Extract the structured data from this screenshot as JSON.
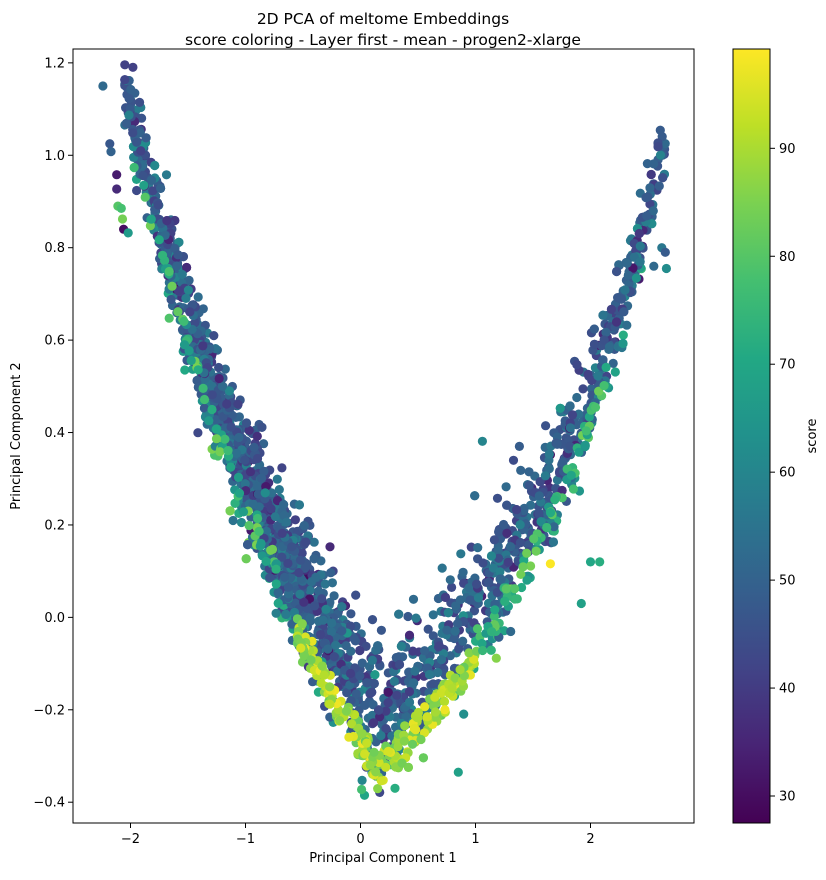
{
  "chart_data": {
    "type": "scatter",
    "title": "2D PCA of meltome Embeddings",
    "subtitle": "score coloring - Layer first - mean - progen2-xlarge",
    "xlabel": "Principal Component 1",
    "ylabel": "Principal Component 2",
    "xlim": [
      -2.5,
      2.9
    ],
    "ylim": [
      -0.445,
      1.23
    ],
    "x_ticks": [
      -2,
      -1,
      0,
      1,
      2
    ],
    "y_ticks": [
      -0.4,
      -0.2,
      0.0,
      0.2,
      0.4,
      0.6,
      0.8,
      1.0,
      1.2
    ],
    "x_tick_labels": [
      "−2",
      "−1",
      "0",
      "1",
      "2"
    ],
    "y_tick_labels": [
      "−0.4",
      "−0.2",
      "0.0",
      "0.2",
      "0.4",
      "0.6",
      "0.8",
      "1.0",
      "1.2"
    ],
    "grid": false,
    "colormap": "viridis",
    "colorbar": {
      "label": "score",
      "range": [
        27.5,
        99.2
      ],
      "ticks": [
        30,
        40,
        50,
        60,
        70,
        80,
        90
      ],
      "tick_labels": [
        "30",
        "40",
        "50",
        "60",
        "70",
        "80",
        "90"
      ]
    },
    "points": [
      {
        "x": -2.24,
        "y": 1.15,
        "c": 52
      },
      {
        "x": -2.18,
        "y": 1.025,
        "c": 47
      },
      {
        "x": -2.17,
        "y": 1.008,
        "c": 50
      },
      {
        "x": -2.12,
        "y": 0.958,
        "c": 33
      },
      {
        "x": -2.12,
        "y": 0.927,
        "c": 36
      },
      {
        "x": -2.11,
        "y": 0.89,
        "c": 80
      },
      {
        "x": -2.08,
        "y": 0.885,
        "c": 78
      },
      {
        "x": -2.07,
        "y": 0.862,
        "c": 84
      },
      {
        "x": -2.06,
        "y": 0.84,
        "c": 30
      },
      {
        "x": -2.02,
        "y": 0.832,
        "c": 66
      },
      {
        "x": -1.53,
        "y": 0.59,
        "c": 66
      },
      {
        "x": 1.06,
        "y": 0.381,
        "c": 60
      },
      {
        "x": 1.33,
        "y": 0.34,
        "c": 44
      },
      {
        "x": 2.0,
        "y": 0.12,
        "c": 70
      },
      {
        "x": 2.08,
        "y": 0.12,
        "c": 72
      },
      {
        "x": 1.92,
        "y": 0.03,
        "c": 68
      },
      {
        "x": 0.85,
        "y": -0.335,
        "c": 68
      },
      {
        "x": 0.3,
        "y": -0.37,
        "c": 72
      },
      {
        "x": 2.62,
        "y": 0.8,
        "c": 56
      },
      {
        "x": 2.65,
        "y": 0.79,
        "c": 48
      },
      {
        "x": 2.66,
        "y": 0.755,
        "c": 62
      },
      {
        "x": 2.55,
        "y": 0.76,
        "c": 52
      }
    ]
  }
}
